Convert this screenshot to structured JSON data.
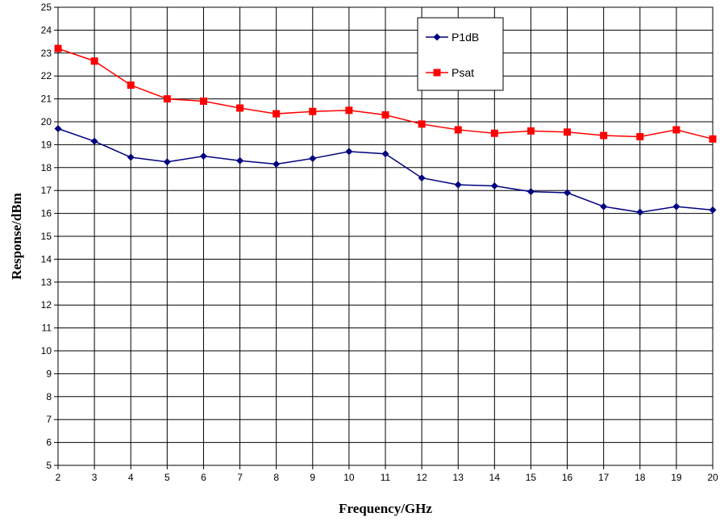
{
  "chart_data": {
    "type": "line",
    "title": "",
    "xlabel": "Frequency/GHz",
    "ylabel": "Response/dBm",
    "x": [
      2,
      3,
      4,
      5,
      6,
      7,
      8,
      9,
      10,
      11,
      12,
      13,
      14,
      15,
      16,
      17,
      18,
      19,
      20
    ],
    "xlim": [
      2,
      20
    ],
    "ylim": [
      5,
      25
    ],
    "xticks": [
      "2",
      "3",
      "4",
      "5",
      "6",
      "7",
      "8",
      "9",
      "10",
      "11",
      "12",
      "13",
      "14",
      "15",
      "16",
      "17",
      "18",
      "19",
      "20"
    ],
    "yticks": [
      "5",
      "6",
      "7",
      "8",
      "9",
      "10",
      "11",
      "12",
      "13",
      "14",
      "15",
      "16",
      "17",
      "18",
      "19",
      "20",
      "21",
      "22",
      "23",
      "24",
      "25"
    ],
    "grid": true,
    "legend_position": "top-right",
    "series": [
      {
        "name": "P1dB",
        "color": "#000080",
        "marker": "diamond",
        "values": [
          19.7,
          19.15,
          18.45,
          18.25,
          18.5,
          18.3,
          18.15,
          18.4,
          18.7,
          18.6,
          17.55,
          17.25,
          17.2,
          16.95,
          16.9,
          16.3,
          16.05,
          16.3,
          16.15
        ]
      },
      {
        "name": "Psat",
        "color": "#ff0000",
        "marker": "square",
        "values": [
          23.2,
          22.65,
          21.6,
          21.0,
          20.9,
          20.6,
          20.35,
          20.45,
          20.5,
          20.3,
          19.9,
          19.65,
          19.5,
          19.6,
          19.55,
          19.4,
          19.35,
          19.65,
          19.25
        ]
      }
    ]
  }
}
